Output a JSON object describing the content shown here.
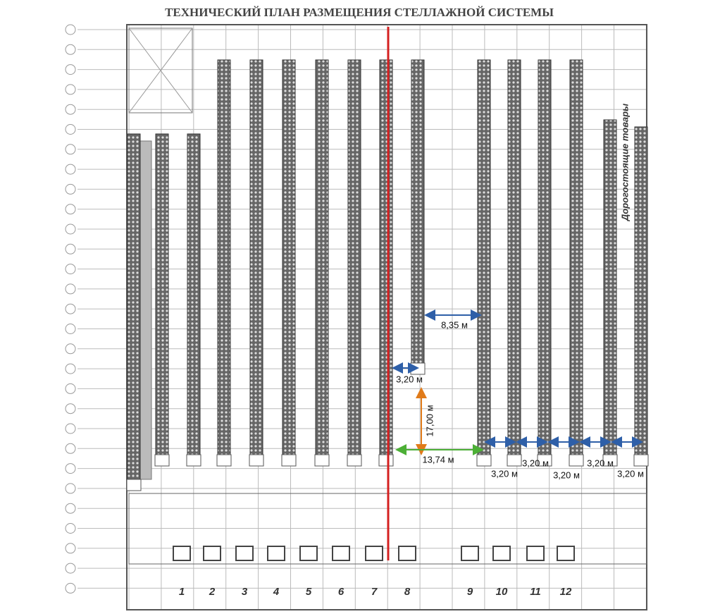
{
  "title": "ТЕХНИЧЕСКИЙ ПЛАН РАЗМЕЩЕНИЯ СТЕЛЛАЖНОЙ СИСТЕМЫ",
  "zone_label": "Дорогостоящие товары",
  "dimensions": [
    "8,35 м",
    "3,20 м",
    "17,00 м",
    "13,74 м",
    "3,20 м",
    "3,20 м",
    "3,20 м",
    "3,20 м",
    "3,20 м"
  ],
  "gates": [
    "1",
    "2",
    "3",
    "4",
    "5",
    "6",
    "7",
    "8",
    "9",
    "10",
    "11",
    "12"
  ]
}
